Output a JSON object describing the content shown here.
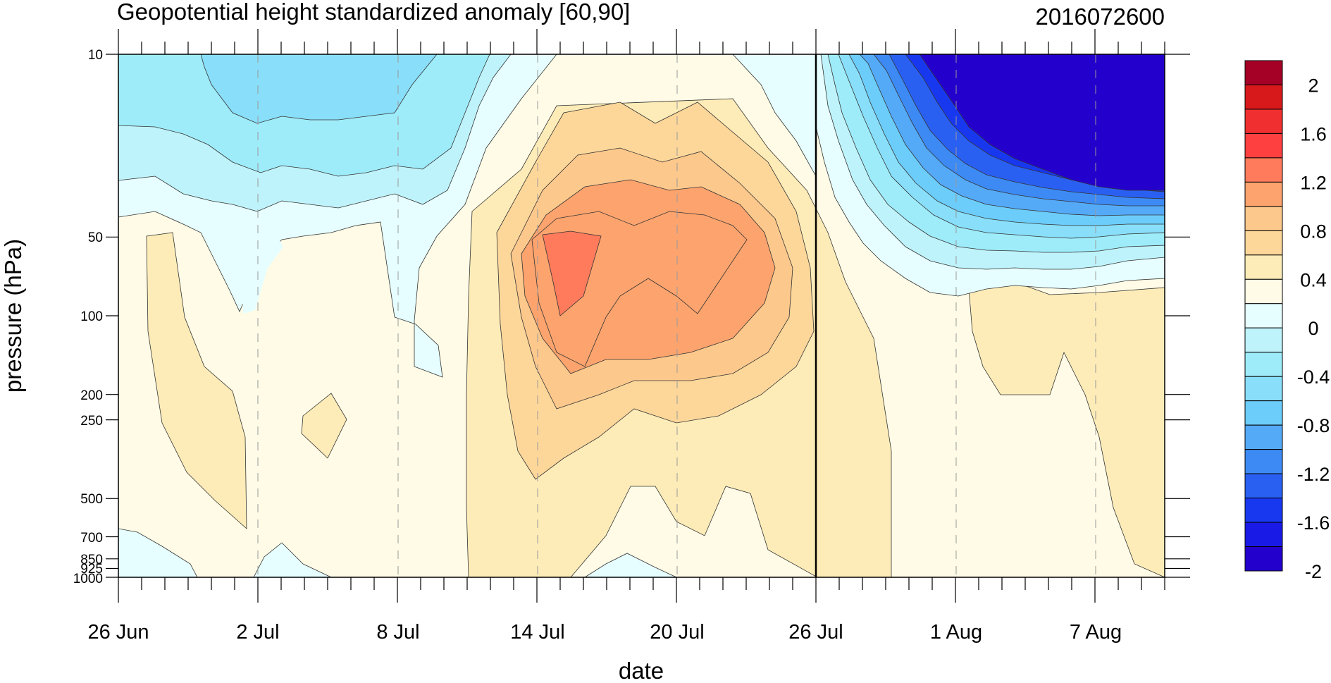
{
  "chart_data": {
    "type": "heatmap",
    "title": "Geopotential height standardized anomaly [60,90]",
    "timestamp_label": "2016072600",
    "xlabel": "date",
    "ylabel": "pressure (hPa)",
    "y_scale": "log",
    "y_reversed": true,
    "ylim": [
      1000,
      10
    ],
    "x_ticks": [
      "26 Jun",
      "2 Jul",
      "8 Jul",
      "14 Jul",
      "20 Jul",
      "26 Jul",
      "1 Aug",
      "7 Aug"
    ],
    "y_ticks": [
      "10",
      "50",
      "100",
      "200",
      "250",
      "500",
      "700",
      "850",
      "925",
      "1000"
    ],
    "y_tick_values": [
      10,
      50,
      100,
      200,
      250,
      500,
      700,
      850,
      925,
      1000
    ],
    "xlim": [
      "2016-06-26",
      "2016-08-11"
    ],
    "reference_date": "2016-07-26",
    "grid_x_dates": [
      "2016-07-02",
      "2016-07-08",
      "2016-07-14",
      "2016-07-20",
      "2016-08-01",
      "2016-08-07"
    ],
    "colorbar": {
      "labels": [
        "2",
        "1.6",
        "1.2",
        "0.8",
        "0.4",
        "0",
        "-0.4",
        "-0.8",
        "-1.2",
        "-1.6",
        "-2"
      ],
      "colors": [
        "#a50026",
        "#d7191c",
        "#f03030",
        "#ff4040",
        "#ff7b5c",
        "#fda46e",
        "#fdc88c",
        "#fdd79a",
        "#fdecb8",
        "#fffbe6",
        "#e6feff",
        "#bff3fb",
        "#9eecfa",
        "#89dffa",
        "#6ccdfa",
        "#55aaf8",
        "#3d8af5",
        "#2a60f2",
        "#1838f0",
        "#1a1ae6",
        "#2400cc"
      ]
    },
    "anomaly_regions": [
      {
        "name": "stratospheric negative anomaly late July",
        "date_range": [
          "2016-07-27",
          "2016-08-11"
        ],
        "pressure_range": [
          10,
          70
        ],
        "min_value": -2
      },
      {
        "name": "positive anomaly mid July",
        "date_range": [
          "2016-07-15",
          "2016-07-21"
        ],
        "pressure_range": [
          50,
          100
        ],
        "max_value": 1.2
      },
      {
        "name": "negative anomaly early July",
        "date_range": [
          "2016-06-26",
          "2016-07-11"
        ],
        "pressure_range": [
          10,
          45
        ],
        "min_value": -0.8
      }
    ]
  }
}
